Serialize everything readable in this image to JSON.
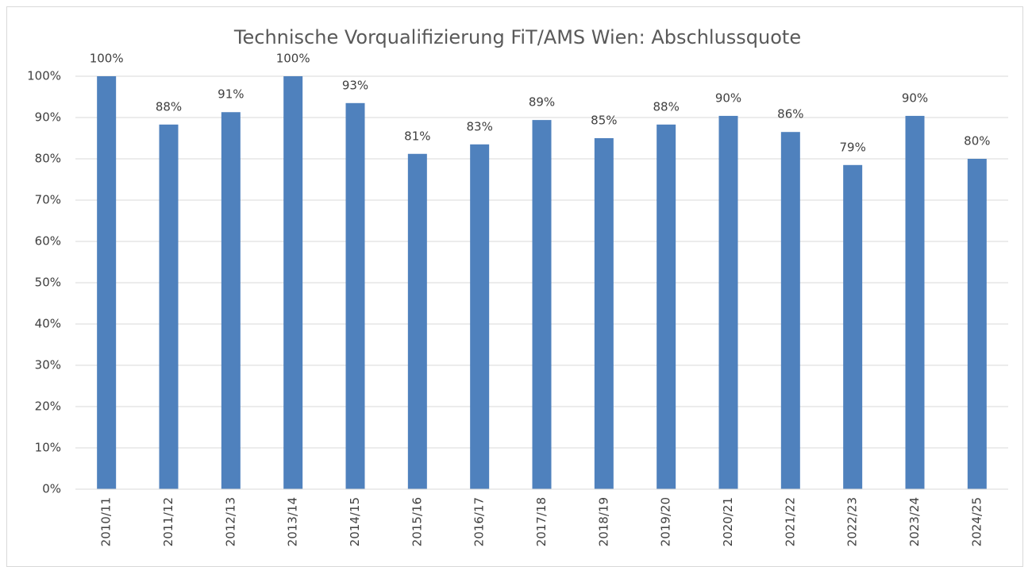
{
  "chart_data": {
    "type": "bar",
    "title": "Technische Vorqualifizierung FiT/AMS Wien: Abschlussquote",
    "categories": [
      "2010/11",
      "2011/12",
      "2012/13",
      "2013/14",
      "2014/15",
      "2015/16",
      "2016/17",
      "2017/18",
      "2018/19",
      "2019/20",
      "2020/21",
      "2021/22",
      "2022/23",
      "2023/24",
      "2024/25"
    ],
    "values": [
      100,
      88.3,
      91.3,
      100,
      93.5,
      81.2,
      83.5,
      89.4,
      85.0,
      88.3,
      90.4,
      86.5,
      78.5,
      90.4,
      80
    ],
    "value_labels": [
      "100%",
      "88%",
      "91%",
      "100%",
      "93%",
      "81%",
      "83%",
      "89%",
      "85%",
      "88%",
      "90%",
      "86%",
      "79%",
      "90%",
      "80%"
    ],
    "color": "#4f81bd",
    "ylim": [
      0,
      100
    ],
    "yticks": [
      {
        "value": 0,
        "label": "0%"
      },
      {
        "value": 10,
        "label": "10%"
      },
      {
        "value": 20,
        "label": "20%"
      },
      {
        "value": 30,
        "label": "30%"
      },
      {
        "value": 40,
        "label": "40%"
      },
      {
        "value": 50,
        "label": "50%"
      },
      {
        "value": 60,
        "label": "60%"
      },
      {
        "value": 70,
        "label": "70%"
      },
      {
        "value": 80,
        "label": "80%"
      },
      {
        "value": 90,
        "label": "90%"
      },
      {
        "value": 100,
        "label": "100%"
      }
    ],
    "grid": true
  }
}
